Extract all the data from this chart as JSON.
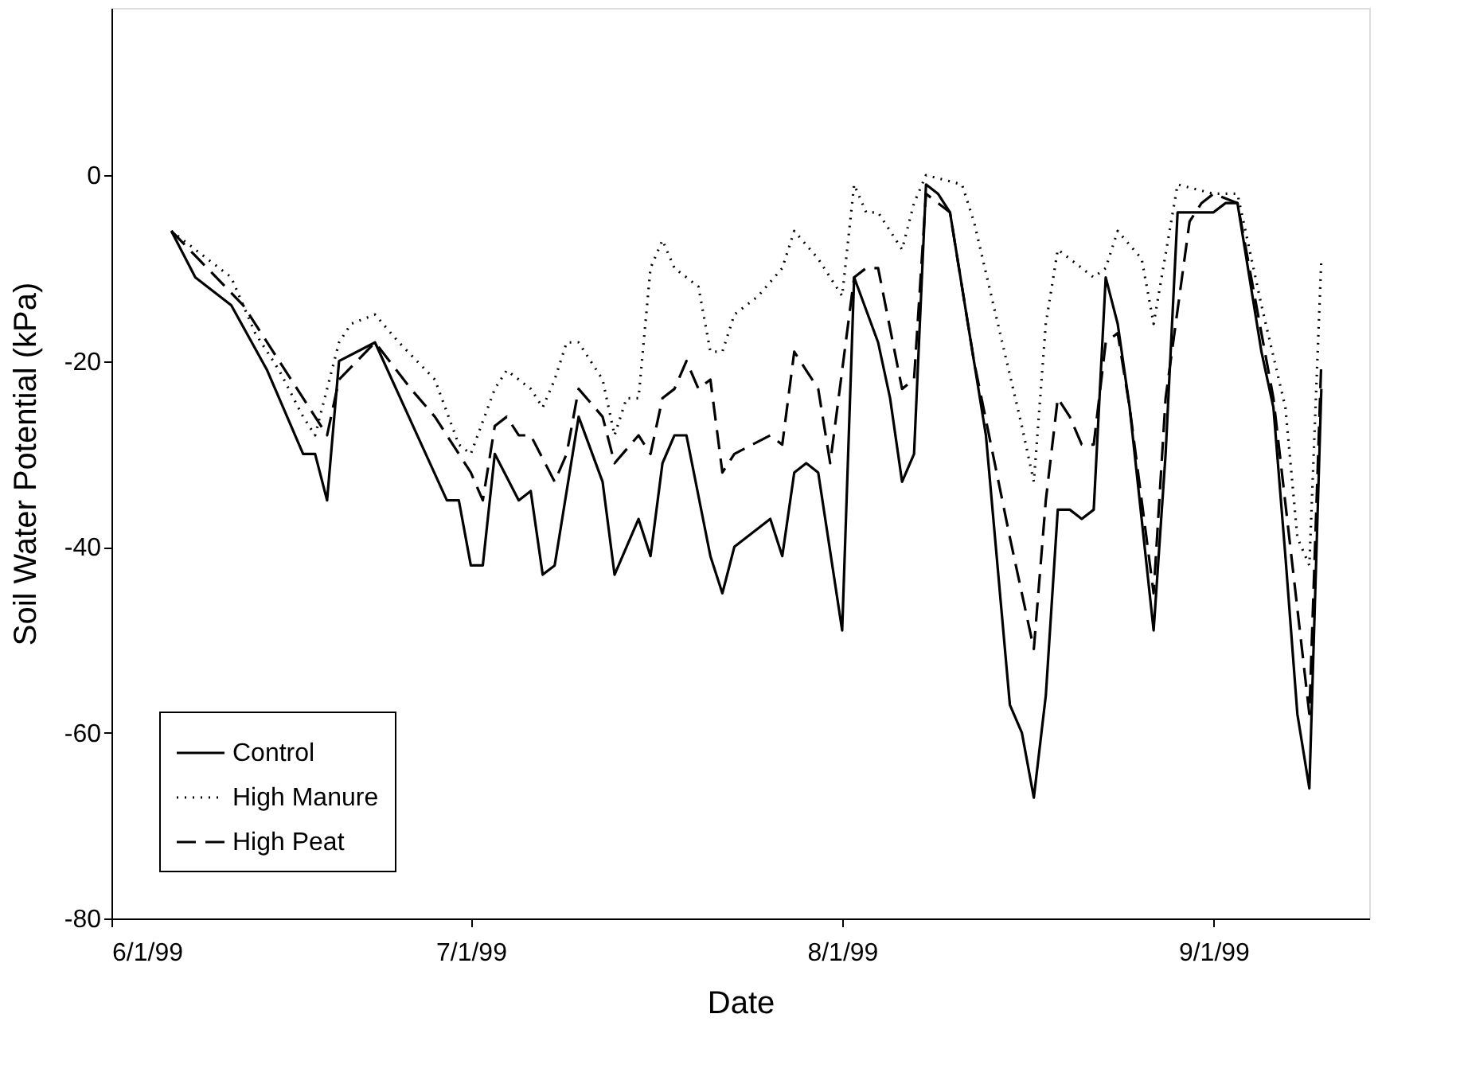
{
  "chart_data": {
    "type": "line",
    "xlabel": "Date",
    "ylabel": "Soil Water Potential (kPa)",
    "xlim": [
      "1999-06-01",
      "1999-09-14"
    ],
    "xticks": [
      {
        "value": "1999-06-01",
        "label": "6/1/99"
      },
      {
        "value": "1999-07-01",
        "label": "7/1/99"
      },
      {
        "value": "1999-08-01",
        "label": "8/1/99"
      },
      {
        "value": "1999-09-01",
        "label": "9/1/99"
      }
    ],
    "ylim": [
      -80,
      18
    ],
    "yticks": [
      -80,
      -60,
      -40,
      -20,
      0
    ],
    "legend": "bottom left",
    "series": [
      {
        "name": "Control",
        "color": "#000000",
        "line_style": "solid",
        "x": [
          "1999-06-06",
          "1999-06-08",
          "1999-06-11",
          "1999-06-14",
          "1999-06-17",
          "1999-06-18",
          "1999-06-19",
          "1999-06-20",
          "1999-06-23",
          "1999-06-29",
          "1999-06-30",
          "1999-07-01",
          "1999-07-02",
          "1999-07-03",
          "1999-07-05",
          "1999-07-06",
          "1999-07-07",
          "1999-07-08",
          "1999-07-10",
          "1999-07-12",
          "1999-07-13",
          "1999-07-14",
          "1999-07-15",
          "1999-07-16",
          "1999-07-17",
          "1999-07-18",
          "1999-07-19",
          "1999-07-21",
          "1999-07-22",
          "1999-07-23",
          "1999-07-26",
          "1999-07-27",
          "1999-07-28",
          "1999-07-29",
          "1999-07-30",
          "1999-08-01",
          "1999-08-02",
          "1999-08-04",
          "1999-08-05",
          "1999-08-06",
          "1999-08-07",
          "1999-08-08",
          "1999-08-09",
          "1999-08-10",
          "1999-08-13",
          "1999-08-15",
          "1999-08-16",
          "1999-08-17",
          "1999-08-18",
          "1999-08-19",
          "1999-08-20",
          "1999-08-21",
          "1999-08-22",
          "1999-08-23",
          "1999-08-24",
          "1999-08-25",
          "1999-08-27",
          "1999-08-28",
          "1999-08-29",
          "1999-08-30",
          "1999-08-31",
          "1999-09-01",
          "1999-09-02",
          "1999-09-03",
          "1999-09-05",
          "1999-09-06",
          "1999-09-07",
          "1999-09-08",
          "1999-09-09",
          "1999-09-10"
        ],
        "values": [
          -6,
          -11,
          -14,
          -21,
          -30,
          -30,
          -35,
          -20,
          -18,
          -35,
          -35,
          -42,
          -42,
          -30,
          -35,
          -34,
          -43,
          -42,
          -26,
          -33,
          -43,
          -40,
          -37,
          -41,
          -31,
          -28,
          -28,
          -41,
          -45,
          -40,
          -37,
          -41,
          -32,
          -31,
          -32,
          -49,
          -11,
          -18,
          -24,
          -33,
          -30,
          -1,
          -2,
          -4,
          -28,
          -57,
          -60,
          -67,
          -56,
          -36,
          -36,
          -37,
          -36,
          -11,
          -16,
          -25,
          -49,
          -30,
          -4,
          -4,
          -4,
          -4,
          -3,
          -3,
          -19,
          -25,
          -41,
          -58,
          -66,
          -23
        ]
      },
      {
        "name": "High Manure",
        "color": "#000000",
        "line_style": "dotted",
        "x": [
          "1999-06-06",
          "1999-06-09",
          "1999-06-11",
          "1999-06-13",
          "1999-06-15",
          "1999-06-17",
          "1999-06-18",
          "1999-06-20",
          "1999-06-21",
          "1999-06-23",
          "1999-06-25",
          "1999-06-28",
          "1999-06-30",
          "1999-07-01",
          "1999-07-03",
          "1999-07-04",
          "1999-07-05",
          "1999-07-06",
          "1999-07-07",
          "1999-07-08",
          "1999-07-09",
          "1999-07-10",
          "1999-07-12",
          "1999-07-13",
          "1999-07-14",
          "1999-07-15",
          "1999-07-16",
          "1999-07-17",
          "1999-07-18",
          "1999-07-20",
          "1999-07-21",
          "1999-07-22",
          "1999-07-23",
          "1999-07-25",
          "1999-07-27",
          "1999-07-28",
          "1999-07-30",
          "1999-08-01",
          "1999-08-02",
          "1999-08-03",
          "1999-08-04",
          "1999-08-06",
          "1999-08-07",
          "1999-08-08",
          "1999-08-11",
          "1999-08-12",
          "1999-08-14",
          "1999-08-16",
          "1999-08-17",
          "1999-08-18",
          "1999-08-19",
          "1999-08-21",
          "1999-08-22",
          "1999-08-23",
          "1999-08-24",
          "1999-08-26",
          "1999-08-27",
          "1999-08-29",
          "1999-09-01",
          "1999-09-03",
          "1999-09-05",
          "1999-09-07",
          "1999-09-08",
          "1999-09-09",
          "1999-09-10"
        ],
        "values": [
          -6,
          -9,
          -11,
          -17,
          -21,
          -26,
          -28,
          -18,
          -16,
          -15,
          -18,
          -22,
          -29,
          -30,
          -23,
          -21,
          -22,
          -23,
          -25,
          -22,
          -18,
          -18,
          -22,
          -28,
          -24,
          -24,
          -10,
          -7,
          -10,
          -12,
          -19,
          -19,
          -15,
          -13,
          -10,
          -6,
          -9,
          -13,
          -1,
          -4,
          -4,
          -8,
          -3,
          0,
          -1,
          -5,
          -16,
          -27,
          -33,
          -16,
          -8,
          -10,
          -11,
          -10,
          -6,
          -9,
          -16,
          -1,
          -2,
          -2,
          -14,
          -25,
          -39,
          -42,
          -9
        ]
      },
      {
        "name": "High Peat",
        "color": "#000000",
        "line_style": "dashed",
        "x": [
          "1999-06-06",
          "1999-06-09",
          "1999-06-12",
          "1999-06-15",
          "1999-06-18",
          "1999-06-19",
          "1999-06-20",
          "1999-06-23",
          "1999-06-26",
          "1999-06-28",
          "1999-07-01",
          "1999-07-02",
          "1999-07-03",
          "1999-07-04",
          "1999-07-05",
          "1999-07-06",
          "1999-07-08",
          "1999-07-09",
          "1999-07-10",
          "1999-07-12",
          "1999-07-13",
          "1999-07-15",
          "1999-07-16",
          "1999-07-17",
          "1999-07-18",
          "1999-07-19",
          "1999-07-20",
          "1999-07-21",
          "1999-07-22",
          "1999-07-23",
          "1999-07-26",
          "1999-07-27",
          "1999-07-28",
          "1999-07-29",
          "1999-07-30",
          "1999-07-31",
          "1999-08-02",
          "1999-08-03",
          "1999-08-04",
          "1999-08-06",
          "1999-08-07",
          "1999-08-08",
          "1999-08-10",
          "1999-08-12",
          "1999-08-15",
          "1999-08-17",
          "1999-08-18",
          "1999-08-19",
          "1999-08-20",
          "1999-08-21",
          "1999-08-22",
          "1999-08-23",
          "1999-08-24",
          "1999-08-25",
          "1999-08-27",
          "1999-08-28",
          "1999-08-30",
          "1999-08-31",
          "1999-09-01",
          "1999-09-03",
          "1999-09-06",
          "1999-09-09",
          "1999-09-10"
        ],
        "values": [
          -6,
          -10,
          -14,
          -20,
          -26,
          -28,
          -22,
          -18,
          -23,
          -26,
          -32,
          -35,
          -27,
          -26,
          -28,
          -28,
          -33,
          -30,
          -23,
          -26,
          -31,
          -28,
          -30,
          -24,
          -23,
          -20,
          -23,
          -22,
          -32,
          -30,
          -28,
          -29,
          -19,
          -21,
          -23,
          -31,
          -11,
          -10,
          -10,
          -23,
          -22,
          -2,
          -4,
          -20,
          -39,
          -51,
          -35,
          -24,
          -26,
          -29,
          -29,
          -18,
          -17,
          -25,
          -45,
          -24,
          -5,
          -3,
          -2,
          -3,
          -24,
          -58,
          -20
        ]
      }
    ]
  }
}
